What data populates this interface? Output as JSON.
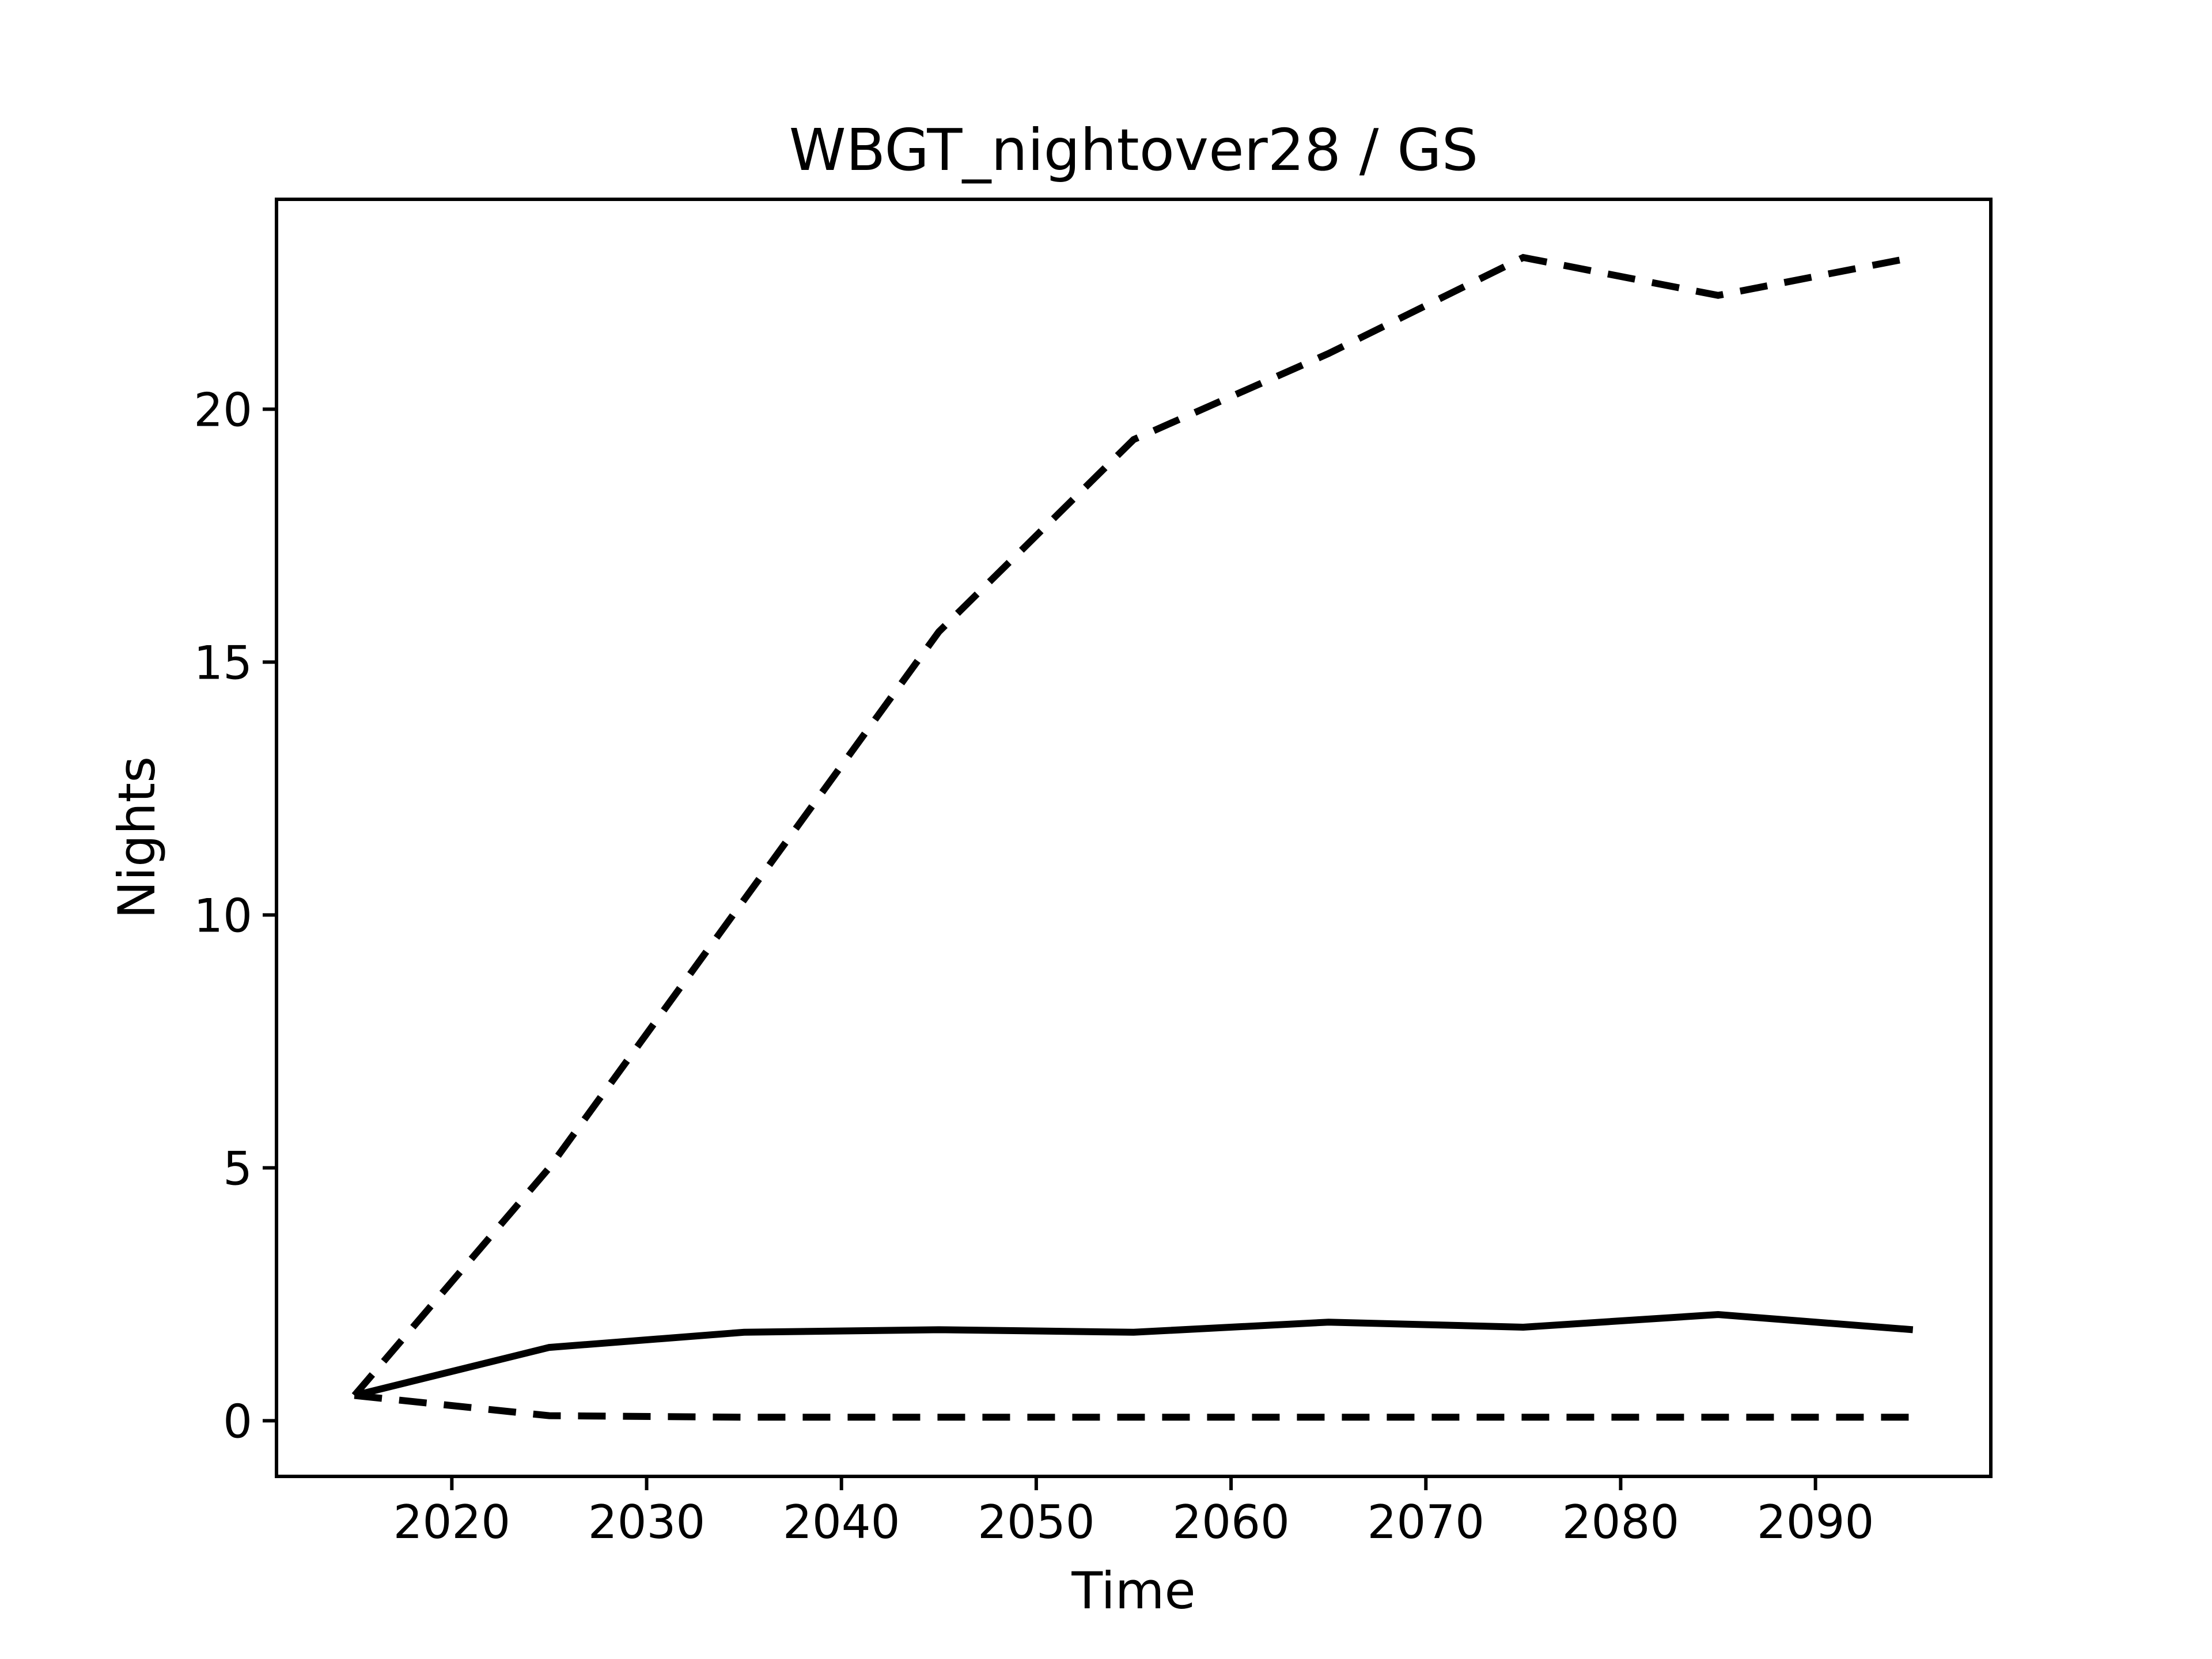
{
  "figure": {
    "background": "#ffffff",
    "foreground": "#000000"
  },
  "chart_data": {
    "type": "line",
    "title": "WBGT_nightover28 / GS",
    "xlabel": "Time",
    "ylabel": "Nights",
    "x": [
      2015,
      2025,
      2035,
      2045,
      2055,
      2065,
      2075,
      2085,
      2095
    ],
    "series": [
      {
        "name": "upper-dashed-line",
        "style": "dashed",
        "color": "#000000",
        "values": [
          0.5,
          5.0,
          10.3,
          15.6,
          19.4,
          21.1,
          23.0,
          22.25,
          23.0
        ]
      },
      {
        "name": "solid-line",
        "style": "solid",
        "color": "#000000",
        "values": [
          0.5,
          1.45,
          1.75,
          1.8,
          1.75,
          1.95,
          1.85,
          2.1,
          1.8
        ]
      },
      {
        "name": "lower-dashed-line",
        "style": "dashed",
        "color": "#000000",
        "values": [
          0.5,
          0.1,
          0.07,
          0.07,
          0.07,
          0.07,
          0.07,
          0.07,
          0.07
        ]
      }
    ],
    "xticks": [
      2020,
      2030,
      2040,
      2050,
      2060,
      2070,
      2080,
      2090
    ],
    "yticks": [
      0,
      5,
      10,
      15,
      20
    ],
    "xlim": [
      2011,
      2099
    ],
    "ylim": [
      -1.1,
      24.15
    ],
    "grid": false,
    "legend": null
  }
}
